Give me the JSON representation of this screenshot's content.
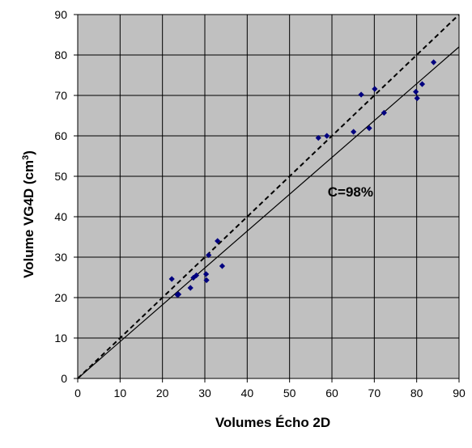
{
  "chart_data": {
    "type": "scatter",
    "title": "",
    "xlabel": "Volumes Écho 2D",
    "ylabel_main": "Volume VG4D (cm",
    "ylabel_sup": "3",
    "ylabel_close": ")",
    "xlim": [
      0,
      90
    ],
    "ylim": [
      0,
      90
    ],
    "xticks": [
      "0",
      "10",
      "20",
      "30",
      "40",
      "50",
      "60",
      "70",
      "80",
      "90"
    ],
    "yticks": [
      "0",
      "10",
      "20",
      "30",
      "40",
      "50",
      "60",
      "70",
      "80",
      "90"
    ],
    "grid": true,
    "legend": "none",
    "colors": {
      "plot_bg": "#c0c0c0",
      "points": "#00007f",
      "grid": "#000000",
      "lines": "#000000"
    },
    "annotation": "C=98%",
    "annotation_at": [
      59,
      45
    ],
    "identity_line": {
      "style": "dashed",
      "from": [
        0,
        0
      ],
      "to": [
        90,
        90
      ]
    },
    "regression_line": {
      "style": "solid",
      "from": [
        0,
        0
      ],
      "to": [
        90,
        82
      ]
    },
    "points": [
      [
        22.2,
        24.6
      ],
      [
        23.5,
        20.7
      ],
      [
        23.8,
        20.8
      ],
      [
        26.6,
        22.4
      ],
      [
        27.3,
        24.9
      ],
      [
        28.0,
        25.5
      ],
      [
        30.3,
        25.8
      ],
      [
        30.4,
        24.3
      ],
      [
        30.9,
        30.5
      ],
      [
        33.0,
        34.0
      ],
      [
        34.1,
        27.8
      ],
      [
        56.8,
        59.5
      ],
      [
        58.8,
        60.0
      ],
      [
        65.1,
        61.0
      ],
      [
        66.9,
        70.2
      ],
      [
        68.8,
        61.9
      ],
      [
        70.1,
        71.6
      ],
      [
        72.3,
        65.7
      ],
      [
        79.8,
        70.9
      ],
      [
        80.1,
        69.3
      ],
      [
        81.3,
        72.8
      ],
      [
        84.0,
        78.2
      ]
    ]
  }
}
